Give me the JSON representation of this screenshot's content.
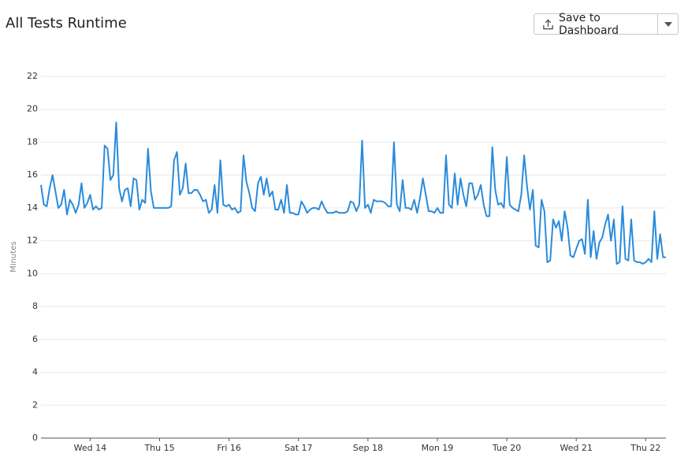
{
  "header": {
    "title": "All Tests Runtime",
    "button": "Save to Dashboard"
  },
  "chart_data": {
    "type": "line",
    "ylabel": "Minutes",
    "color": "#2a8bdb",
    "grid": true,
    "ylim": [
      0,
      22
    ],
    "yticks": [
      0,
      2,
      4,
      6,
      8,
      10,
      12,
      14,
      16,
      18,
      20,
      22
    ],
    "categories": [
      null,
      null,
      null,
      null,
      null,
      null,
      null,
      null,
      null,
      null,
      null,
      null,
      null,
      null,
      null,
      null,
      null,
      "Wed 14",
      null,
      null,
      null,
      null,
      null,
      null,
      null,
      null,
      null,
      null,
      null,
      null,
      null,
      null,
      null,
      null,
      null,
      null,
      null,
      null,
      null,
      null,
      null,
      "Thu 15",
      null,
      null,
      null,
      null,
      null,
      null,
      null,
      null,
      null,
      null,
      null,
      null,
      null,
      null,
      null,
      null,
      null,
      null,
      null,
      null,
      null,
      null,
      null,
      "Fri 16",
      null,
      null,
      null,
      null,
      null,
      null,
      null,
      null,
      null,
      null,
      null,
      null,
      null,
      null,
      null,
      null,
      null,
      null,
      null,
      null,
      null,
      null,
      null,
      "Sat 17",
      null,
      null,
      null,
      null,
      null,
      null,
      null,
      null,
      null,
      null,
      null,
      null,
      null,
      null,
      null,
      null,
      null,
      null,
      null,
      null,
      null,
      null,
      null,
      "Sep 18",
      null,
      null,
      null,
      null,
      null,
      null,
      null,
      null,
      null,
      null,
      null,
      null,
      null,
      null,
      null,
      null,
      null,
      null,
      null,
      null,
      null,
      null,
      null,
      "Mon 19",
      null,
      null,
      null,
      null,
      null,
      null,
      null,
      null,
      null,
      null,
      null,
      null,
      null,
      null,
      null,
      null,
      null,
      null,
      null,
      null,
      null,
      null,
      null,
      "Tue 20",
      null,
      null,
      null,
      null,
      null,
      null,
      null,
      null,
      null,
      null,
      null,
      null,
      null,
      null,
      null,
      null,
      null,
      null,
      null,
      null,
      null,
      null,
      null,
      "Wed 21",
      null,
      null,
      null,
      null,
      null,
      null,
      null,
      null,
      null,
      null,
      null,
      null,
      null,
      null,
      null,
      null,
      null,
      null,
      null,
      null,
      null,
      null,
      null,
      "Thu 22",
      null,
      null,
      null,
      null,
      null,
      null,
      null
    ],
    "values": [
      15.4,
      14.2,
      14.1,
      15.2,
      16.0,
      15.0,
      14.0,
      14.2,
      15.1,
      13.6,
      14.5,
      14.2,
      13.7,
      14.2,
      15.5,
      14.0,
      14.3,
      14.8,
      13.9,
      14.1,
      13.9,
      14.0,
      17.8,
      17.6,
      15.7,
      16.0,
      19.2,
      15.2,
      14.4,
      15.1,
      15.2,
      14.1,
      15.8,
      15.7,
      13.9,
      14.5,
      14.3,
      17.6,
      15.0,
      14.0,
      14.0,
      14.0,
      14.0,
      14.0,
      14.0,
      14.1,
      16.9,
      17.4,
      14.8,
      15.2,
      16.7,
      14.9,
      14.9,
      15.1,
      15.1,
      14.8,
      14.4,
      14.5,
      13.7,
      13.9,
      15.4,
      13.7,
      16.9,
      14.2,
      14.1,
      14.2,
      13.9,
      14.0,
      13.7,
      13.8,
      17.2,
      15.6,
      14.9,
      14.0,
      13.8,
      15.5,
      15.9,
      14.8,
      15.8,
      14.7,
      15.0,
      13.9,
      13.9,
      14.5,
      13.7,
      15.4,
      13.7,
      13.7,
      13.6,
      13.6,
      14.4,
      14.1,
      13.7,
      13.9,
      14.0,
      14.0,
      13.9,
      14.4,
      14.0,
      13.7,
      13.7,
      13.7,
      13.8,
      13.7,
      13.7,
      13.7,
      13.8,
      14.4,
      14.3,
      13.8,
      14.2,
      18.1,
      14.0,
      14.2,
      13.7,
      14.5,
      14.4,
      14.4,
      14.4,
      14.3,
      14.1,
      14.1,
      18.0,
      14.2,
      13.8,
      15.7,
      14.0,
      14.0,
      13.9,
      14.5,
      13.7,
      14.6,
      15.8,
      14.8,
      13.8,
      13.8,
      13.7,
      14.0,
      13.7,
      13.7,
      17.2,
      14.2,
      14.0,
      16.1,
      14.2,
      15.8,
      14.8,
      14.1,
      15.5,
      15.5,
      14.5,
      14.8,
      15.4,
      14.2,
      13.5,
      13.5,
      17.7,
      15.1,
      14.2,
      14.3,
      14.0,
      17.1,
      14.2,
      14.0,
      13.9,
      13.8,
      14.8,
      17.2,
      15.3,
      13.9,
      15.1,
      11.7,
      11.6,
      14.5,
      13.8,
      10.7,
      10.8,
      13.3,
      12.8,
      13.2,
      12.0,
      13.8,
      12.8,
      11.1,
      11.0,
      11.5,
      12.0,
      12.1,
      11.2,
      14.5,
      11.0,
      12.6,
      10.9,
      11.9,
      12.2,
      13.0,
      13.6,
      12.0,
      13.3,
      10.6,
      10.7,
      14.1,
      10.9,
      10.8,
      13.3,
      10.8,
      10.7,
      10.7,
      10.6,
      10.7,
      10.9,
      10.7,
      13.8,
      10.9,
      12.4,
      11.0,
      11.0
    ]
  }
}
